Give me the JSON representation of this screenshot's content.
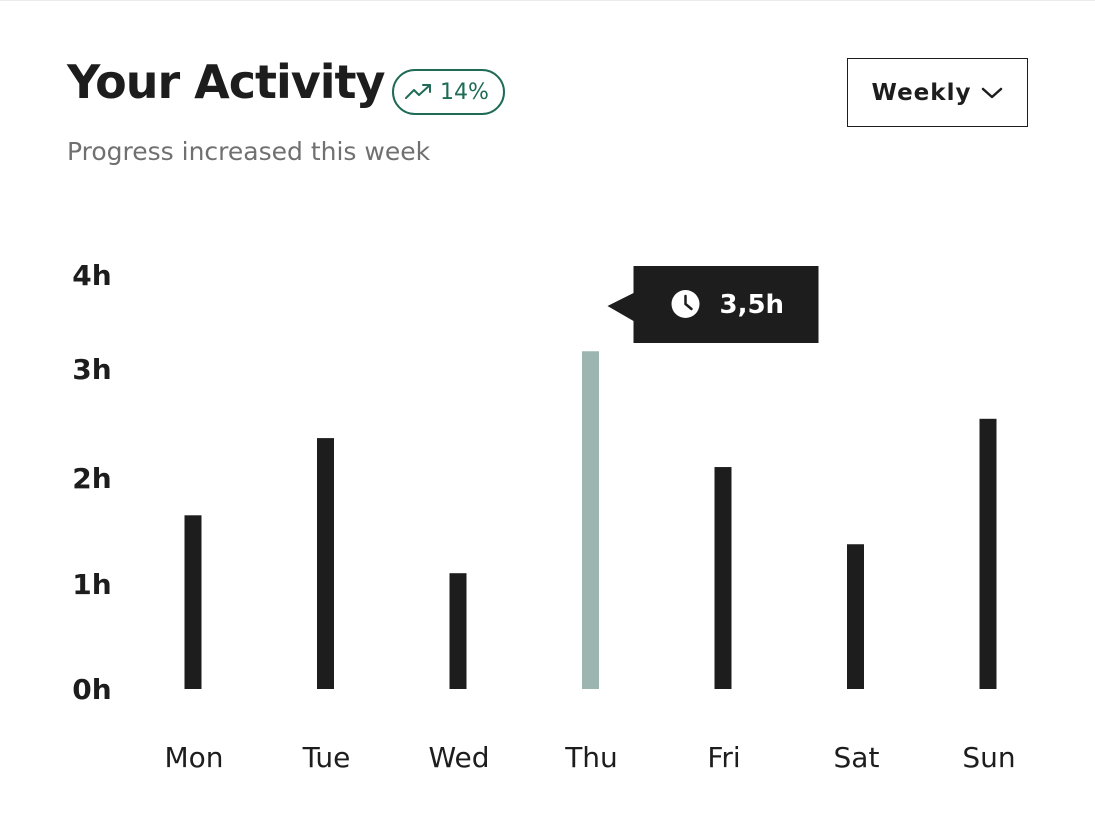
{
  "header": {
    "title": "Your Activity",
    "trend": {
      "icon": "trending-up-icon",
      "value": "14%",
      "color": "#1f6b57"
    },
    "subtitle": "Progress increased this week"
  },
  "period_select": {
    "label": "Weekly",
    "icon": "chevron-down-icon"
  },
  "tooltip": {
    "icon": "clock-icon",
    "value": "3,5h",
    "day": "Thu"
  },
  "colors": {
    "bar": "#1d1d1d",
    "bar_highlight": "#9db5b0",
    "tooltip_bg": "#1d1d1d"
  },
  "chart_data": {
    "type": "bar",
    "categories": [
      "Mon",
      "Tue",
      "Wed",
      "Thu",
      "Fri",
      "Sat",
      "Sun"
    ],
    "values": [
      1.8,
      2.6,
      1.2,
      3.5,
      2.3,
      1.5,
      2.8
    ],
    "unit": "h",
    "ylim": [
      0,
      4
    ],
    "yticks": [
      "0h",
      "1h",
      "2h",
      "3h",
      "4h"
    ],
    "highlight_index": 3,
    "grid": false,
    "legend": "none"
  }
}
